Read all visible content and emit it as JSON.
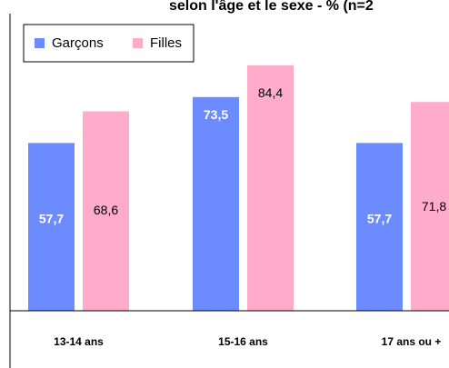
{
  "chart_data": {
    "type": "bar",
    "title": "selon l'âge et le sexe - % (n=2",
    "categories": [
      "13-14 ans",
      "15-16 ans",
      "17 ans ou +"
    ],
    "series": [
      {
        "name": "Garçons",
        "values": [
          57.7,
          73.5,
          57.7
        ],
        "labels": [
          "57,7",
          "73,5",
          "57,7"
        ],
        "color": "#6b8bff"
      },
      {
        "name": "Filles",
        "values": [
          68.6,
          84.4,
          71.8
        ],
        "labels": [
          "68,6",
          "84,4",
          "71,8"
        ],
        "color": "#ffacca"
      }
    ],
    "ylim": [
      0,
      100
    ],
    "legend_position": "top-left",
    "grid": false
  }
}
